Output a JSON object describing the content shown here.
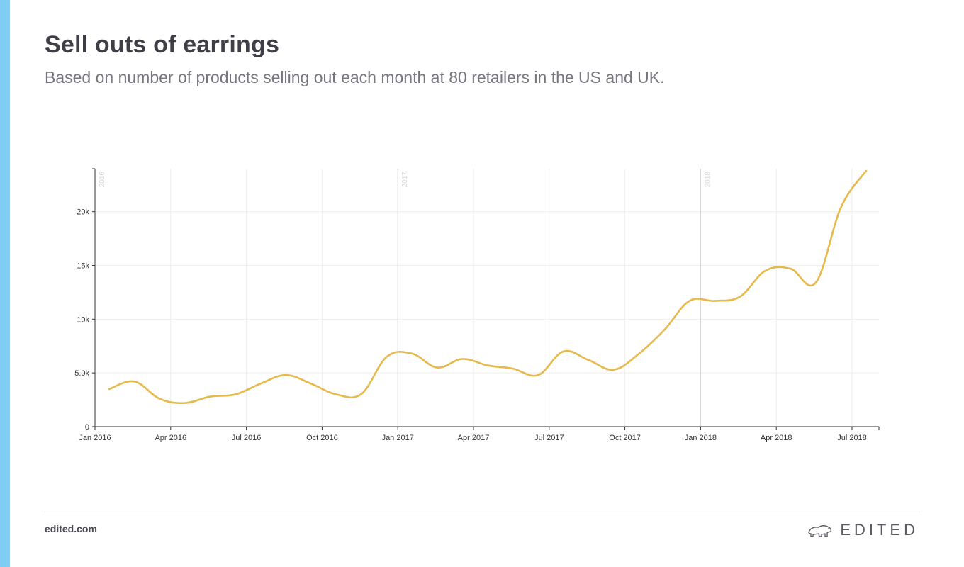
{
  "header": {
    "title": "Sell outs of earrings",
    "subtitle": "Based on number of products selling out each month at 80 retailers in the US and UK."
  },
  "footer": {
    "link": "edited.com",
    "brand": "EDITED",
    "brand_icon": "polar-bear-icon"
  },
  "colors": {
    "accent": "#7fcdf3",
    "line": "#e7b84a",
    "grid": "#eeeeee",
    "year_grid": "#d5d5d5",
    "text": "#3f3f47"
  },
  "chart_data": {
    "type": "line",
    "x_unit": "month",
    "xlim": [
      "2016-01",
      "2018-08"
    ],
    "ylim": [
      0,
      24000
    ],
    "yticks": [
      0,
      5000,
      10000,
      15000,
      20000
    ],
    "ytick_labels": [
      "0",
      "5.0k",
      "10k",
      "15k",
      "20k"
    ],
    "xticks": [
      "2016-01",
      "2016-04",
      "2016-07",
      "2016-10",
      "2017-01",
      "2017-04",
      "2017-07",
      "2017-10",
      "2018-01",
      "2018-04",
      "2018-07"
    ],
    "xtick_labels": [
      "Jan 2016",
      "Apr 2016",
      "Jul 2016",
      "Oct 2016",
      "Jan 2017",
      "Apr 2017",
      "Jul 2017",
      "Oct 2017",
      "Jan 2018",
      "Apr 2018",
      "Jul 2018"
    ],
    "year_markers": [
      {
        "date": "2016-01",
        "label": "2016"
      },
      {
        "date": "2017-01",
        "label": "2017"
      },
      {
        "date": "2018-01",
        "label": "2018"
      }
    ],
    "grid": true,
    "series": [
      {
        "x": [
          "2016-01",
          "2016-02",
          "2016-03",
          "2016-04",
          "2016-05",
          "2016-06",
          "2016-07",
          "2016-08",
          "2016-09",
          "2016-10",
          "2016-11",
          "2016-12",
          "2017-01",
          "2017-02",
          "2017-03",
          "2017-04",
          "2017-05",
          "2017-06",
          "2017-07",
          "2017-08",
          "2017-09",
          "2017-10",
          "2017-11",
          "2017-12",
          "2018-01",
          "2018-02",
          "2018-03",
          "2018-04",
          "2018-05",
          "2018-06",
          "2018-07"
        ],
        "y": [
          3500,
          4200,
          2600,
          2200,
          2800,
          3000,
          4000,
          4800,
          4000,
          3000,
          3050,
          6500,
          6800,
          5500,
          6300,
          5700,
          5400,
          4800,
          7000,
          6200,
          5300,
          6800,
          9000,
          11700,
          11700,
          12100,
          14500,
          14700,
          13400,
          20400,
          23800
        ]
      }
    ]
  }
}
